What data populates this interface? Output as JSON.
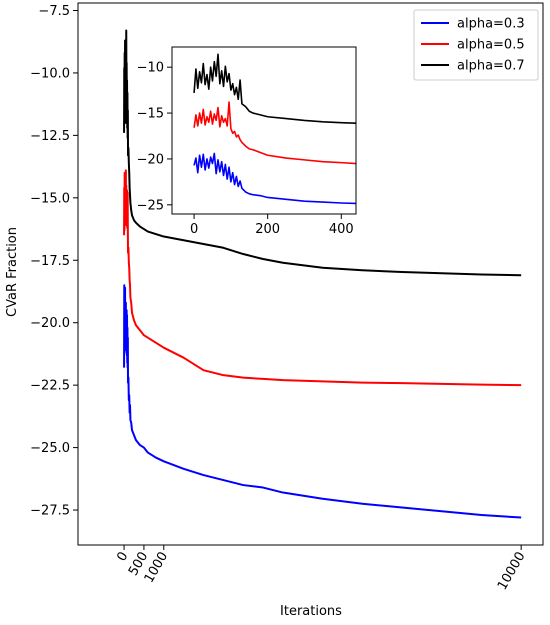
{
  "chart_data": [
    {
      "type": "line",
      "title": "",
      "xlabel": "Iterations",
      "ylabel": "CVaR Fraction",
      "xlim": [
        -1160,
        10550
      ],
      "ylim": [
        -28.9,
        -7.2
      ],
      "xticks": [
        0,
        500,
        1000,
        10000
      ],
      "xtick_labels": [
        "0",
        "500",
        "1000",
        "10000"
      ],
      "yticks": [
        -7.5,
        -10.0,
        -12.5,
        -15.0,
        -17.5,
        -20.0,
        -22.5,
        -25.0,
        -27.5
      ],
      "ytick_labels": [
        "−7.5",
        "−10.0",
        "−12.5",
        "−15.0",
        "−17.5",
        "−20.0",
        "−22.5",
        "−25.0",
        "−27.5"
      ],
      "grid": false,
      "legend": {
        "position": "top-right"
      },
      "series": [
        {
          "name": "alpha=0.3",
          "color": "#0000ff",
          "points": [
            [
              0,
              -21.8
            ],
            [
              5,
              -18.5
            ],
            [
              10,
              -21.2
            ],
            [
              15,
              -19.0
            ],
            [
              20,
              -20.8
            ],
            [
              25,
              -18.6
            ],
            [
              30,
              -20.5
            ],
            [
              35,
              -19.4
            ],
            [
              40,
              -21.0
            ],
            [
              45,
              -19.2
            ],
            [
              50,
              -21.1
            ],
            [
              55,
              -19.8
            ],
            [
              60,
              -20.7
            ],
            [
              65,
              -19.5
            ],
            [
              70,
              -21.3
            ],
            [
              75,
              -19.7
            ],
            [
              80,
              -21.6
            ],
            [
              85,
              -20.2
            ],
            [
              90,
              -21.8
            ],
            [
              95,
              -20.6
            ],
            [
              100,
              -22.4
            ],
            [
              110,
              -22.2
            ],
            [
              120,
              -23.1
            ],
            [
              130,
              -22.9
            ],
            [
              140,
              -23.6
            ],
            [
              150,
              -23.3
            ],
            [
              160,
              -23.9
            ],
            [
              180,
              -24.0
            ],
            [
              200,
              -24.3
            ],
            [
              250,
              -24.5
            ],
            [
              300,
              -24.7
            ],
            [
              400,
              -24.9
            ],
            [
              500,
              -25.0
            ],
            [
              600,
              -25.2
            ],
            [
              800,
              -25.4
            ],
            [
              1000,
              -25.55
            ],
            [
              1500,
              -25.85
            ],
            [
              2000,
              -26.1
            ],
            [
              2500,
              -26.3
            ],
            [
              3000,
              -26.5
            ],
            [
              3500,
              -26.6
            ],
            [
              4000,
              -26.8
            ],
            [
              5000,
              -27.05
            ],
            [
              6000,
              -27.25
            ],
            [
              7000,
              -27.4
            ],
            [
              8000,
              -27.55
            ],
            [
              9000,
              -27.7
            ],
            [
              10000,
              -27.8
            ]
          ]
        },
        {
          "name": "alpha=0.5",
          "color": "#ff0000",
          "points": [
            [
              0,
              -16.5
            ],
            [
              5,
              -14.6
            ],
            [
              10,
              -16.3
            ],
            [
              15,
              -14.0
            ],
            [
              20,
              -15.8
            ],
            [
              25,
              -14.4
            ],
            [
              30,
              -16.0
            ],
            [
              35,
              -14.8
            ],
            [
              40,
              -15.5
            ],
            [
              45,
              -13.9
            ],
            [
              50,
              -15.9
            ],
            [
              55,
              -14.5
            ],
            [
              60,
              -16.1
            ],
            [
              65,
              -15.0
            ],
            [
              70,
              -15.6
            ],
            [
              75,
              -14.7
            ],
            [
              80,
              -16.2
            ],
            [
              85,
              -15.3
            ],
            [
              90,
              -14.8
            ],
            [
              95,
              -16.3
            ],
            [
              100,
              -17.2
            ],
            [
              110,
              -17.0
            ],
            [
              120,
              -17.6
            ],
            [
              130,
              -17.8
            ],
            [
              140,
              -18.3
            ],
            [
              150,
              -18.5
            ],
            [
              160,
              -19.0
            ],
            [
              180,
              -19.2
            ],
            [
              200,
              -19.6
            ],
            [
              250,
              -19.9
            ],
            [
              300,
              -20.1
            ],
            [
              400,
              -20.3
            ],
            [
              500,
              -20.5
            ],
            [
              600,
              -20.6
            ],
            [
              800,
              -20.8
            ],
            [
              1000,
              -21.0
            ],
            [
              1500,
              -21.4
            ],
            [
              2000,
              -21.9
            ],
            [
              2500,
              -22.1
            ],
            [
              3000,
              -22.2
            ],
            [
              3500,
              -22.25
            ],
            [
              4000,
              -22.3
            ],
            [
              5000,
              -22.35
            ],
            [
              6000,
              -22.4
            ],
            [
              7000,
              -22.42
            ],
            [
              8000,
              -22.45
            ],
            [
              9000,
              -22.48
            ],
            [
              10000,
              -22.5
            ]
          ]
        },
        {
          "name": "alpha=0.7",
          "color": "#000000",
          "points": [
            [
              0,
              -12.4
            ],
            [
              5,
              -9.8
            ],
            [
              10,
              -11.9
            ],
            [
              15,
              -9.2
            ],
            [
              20,
              -11.2
            ],
            [
              25,
              -8.7
            ],
            [
              30,
              -10.9
            ],
            [
              35,
              -9.4
            ],
            [
              40,
              -12.0
            ],
            [
              45,
              -10.1
            ],
            [
              50,
              -11.4
            ],
            [
              55,
              -8.3
            ],
            [
              60,
              -10.7
            ],
            [
              65,
              -9.6
            ],
            [
              70,
              -11.8
            ],
            [
              75,
              -10.3
            ],
            [
              80,
              -12.2
            ],
            [
              85,
              -10.8
            ],
            [
              90,
              -12.6
            ],
            [
              95,
              -11.5
            ],
            [
              100,
              -13.3
            ],
            [
              110,
              -13.0
            ],
            [
              120,
              -13.6
            ],
            [
              130,
              -14.0
            ],
            [
              140,
              -14.6
            ],
            [
              150,
              -14.9
            ],
            [
              160,
              -15.2
            ],
            [
              180,
              -15.5
            ],
            [
              200,
              -15.7
            ],
            [
              250,
              -15.9
            ],
            [
              300,
              -16.0
            ],
            [
              400,
              -16.15
            ],
            [
              500,
              -16.25
            ],
            [
              600,
              -16.35
            ],
            [
              800,
              -16.45
            ],
            [
              1000,
              -16.55
            ],
            [
              1500,
              -16.7
            ],
            [
              2000,
              -16.85
            ],
            [
              2500,
              -17.0
            ],
            [
              3000,
              -17.25
            ],
            [
              3500,
              -17.45
            ],
            [
              4000,
              -17.6
            ],
            [
              5000,
              -17.8
            ],
            [
              6000,
              -17.9
            ],
            [
              7000,
              -17.97
            ],
            [
              8000,
              -18.02
            ],
            [
              9000,
              -18.07
            ],
            [
              10000,
              -18.1
            ]
          ]
        }
      ]
    },
    {
      "type": "line",
      "title": "",
      "xlabel": "",
      "ylabel": "",
      "xlim": [
        -60,
        440
      ],
      "ylim": [
        -26.0,
        -7.8
      ],
      "xticks": [
        0,
        200,
        400
      ],
      "xtick_labels": [
        "0",
        "200",
        "400"
      ],
      "yticks": [
        -10,
        -15,
        -20,
        -25
      ],
      "ytick_labels": [
        "−10",
        "−15",
        "−20",
        "−25"
      ],
      "grid": false,
      "legend": null,
      "series": [
        {
          "color": "#0000ff",
          "points": [
            [
              0,
              -20.7
            ],
            [
              5,
              -19.9
            ],
            [
              10,
              -21.5
            ],
            [
              15,
              -19.6
            ],
            [
              20,
              -20.9
            ],
            [
              25,
              -19.5
            ],
            [
              30,
              -21.2
            ],
            [
              35,
              -20.0
            ],
            [
              40,
              -21.0
            ],
            [
              45,
              -19.8
            ],
            [
              50,
              -20.5
            ],
            [
              55,
              -19.4
            ],
            [
              60,
              -21.6
            ],
            [
              65,
              -20.1
            ],
            [
              70,
              -21.4
            ],
            [
              75,
              -20.3
            ],
            [
              80,
              -21.8
            ],
            [
              85,
              -20.6
            ],
            [
              90,
              -22.2
            ],
            [
              95,
              -20.9
            ],
            [
              100,
              -22.5
            ],
            [
              105,
              -21.5
            ],
            [
              110,
              -22.8
            ],
            [
              115,
              -21.9
            ],
            [
              120,
              -23.0
            ],
            [
              125,
              -22.4
            ],
            [
              130,
              -23.2
            ],
            [
              140,
              -23.6
            ],
            [
              150,
              -23.8
            ],
            [
              160,
              -23.9
            ],
            [
              180,
              -24.0
            ],
            [
              200,
              -24.2
            ],
            [
              250,
              -24.4
            ],
            [
              300,
              -24.6
            ],
            [
              350,
              -24.7
            ],
            [
              400,
              -24.8
            ],
            [
              440,
              -24.85
            ]
          ]
        },
        {
          "color": "#ff0000",
          "points": [
            [
              0,
              -16.6
            ],
            [
              5,
              -15.2
            ],
            [
              10,
              -16.4
            ],
            [
              15,
              -15.0
            ],
            [
              20,
              -16.1
            ],
            [
              25,
              -14.6
            ],
            [
              30,
              -16.3
            ],
            [
              35,
              -15.4
            ],
            [
              40,
              -16.0
            ],
            [
              45,
              -14.8
            ],
            [
              50,
              -16.2
            ],
            [
              55,
              -15.1
            ],
            [
              60,
              -15.8
            ],
            [
              65,
              -14.4
            ],
            [
              70,
              -16.5
            ],
            [
              75,
              -15.3
            ],
            [
              80,
              -16.0
            ],
            [
              85,
              -15.6
            ],
            [
              90,
              -16.4
            ],
            [
              95,
              -13.8
            ],
            [
              100,
              -16.7
            ],
            [
              105,
              -17.2
            ],
            [
              110,
              -17.0
            ],
            [
              115,
              -17.6
            ],
            [
              120,
              -17.4
            ],
            [
              125,
              -17.9
            ],
            [
              130,
              -18.2
            ],
            [
              140,
              -18.6
            ],
            [
              150,
              -18.9
            ],
            [
              160,
              -19.0
            ],
            [
              180,
              -19.3
            ],
            [
              200,
              -19.6
            ],
            [
              250,
              -19.9
            ],
            [
              300,
              -20.1
            ],
            [
              350,
              -20.3
            ],
            [
              400,
              -20.4
            ],
            [
              440,
              -20.5
            ]
          ]
        },
        {
          "color": "#000000",
          "points": [
            [
              0,
              -12.8
            ],
            [
              5,
              -10.2
            ],
            [
              10,
              -12.3
            ],
            [
              15,
              -10.5
            ],
            [
              20,
              -11.7
            ],
            [
              25,
              -9.6
            ],
            [
              30,
              -11.9
            ],
            [
              35,
              -10.8
            ],
            [
              40,
              -12.4
            ],
            [
              45,
              -10.0
            ],
            [
              50,
              -11.5
            ],
            [
              55,
              -9.4
            ],
            [
              60,
              -11.0
            ],
            [
              65,
              -8.6
            ],
            [
              70,
              -11.8
            ],
            [
              75,
              -10.4
            ],
            [
              80,
              -12.1
            ],
            [
              85,
              -9.9
            ],
            [
              90,
              -11.6
            ],
            [
              95,
              -10.7
            ],
            [
              100,
              -12.5
            ],
            [
              105,
              -11.8
            ],
            [
              110,
              -13.0
            ],
            [
              115,
              -12.2
            ],
            [
              120,
              -13.5
            ],
            [
              125,
              -11.4
            ],
            [
              130,
              -14.0
            ],
            [
              140,
              -14.3
            ],
            [
              150,
              -14.8
            ],
            [
              160,
              -15.0
            ],
            [
              180,
              -15.2
            ],
            [
              200,
              -15.4
            ],
            [
              250,
              -15.6
            ],
            [
              300,
              -15.8
            ],
            [
              350,
              -15.95
            ],
            [
              400,
              -16.05
            ],
            [
              440,
              -16.1
            ]
          ]
        }
      ]
    }
  ]
}
